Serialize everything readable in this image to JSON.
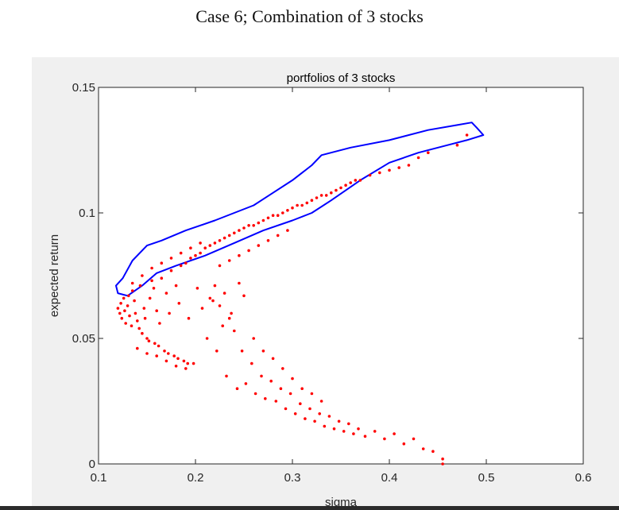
{
  "page": {
    "heading": "Case 6; Combination of  3 stocks"
  },
  "chart_data": {
    "type": "scatter",
    "title": "portfolios of 3 stocks",
    "xlabel": "sigma",
    "ylabel": "expected return",
    "xlim": [
      0.1,
      0.6
    ],
    "ylim": [
      0,
      0.15
    ],
    "xticks": [
      "0.1",
      "0.2",
      "0.3",
      "0.4",
      "0.5",
      "0.6"
    ],
    "yticks": [
      "0",
      "0.05",
      "0.1",
      "0.15"
    ],
    "grid": false,
    "colors": {
      "points": "#ff0000",
      "envelope": "#0000ff"
    },
    "series": [
      {
        "kind": "scatter",
        "points": [
          [
            0.12,
            0.062
          ],
          [
            0.122,
            0.06
          ],
          [
            0.124,
            0.058
          ],
          [
            0.123,
            0.064
          ],
          [
            0.126,
            0.066
          ],
          [
            0.128,
            0.056
          ],
          [
            0.13,
            0.063
          ],
          [
            0.127,
            0.061
          ],
          [
            0.132,
            0.059
          ],
          [
            0.131,
            0.067
          ],
          [
            0.135,
            0.069
          ],
          [
            0.134,
            0.055
          ],
          [
            0.138,
            0.06
          ],
          [
            0.14,
            0.057
          ],
          [
            0.137,
            0.065
          ],
          [
            0.142,
            0.054
          ],
          [
            0.145,
            0.052
          ],
          [
            0.143,
            0.071
          ],
          [
            0.147,
            0.062
          ],
          [
            0.15,
            0.05
          ],
          [
            0.148,
            0.058
          ],
          [
            0.152,
            0.049
          ],
          [
            0.155,
            0.073
          ],
          [
            0.153,
            0.066
          ],
          [
            0.158,
            0.048
          ],
          [
            0.16,
            0.061
          ],
          [
            0.157,
            0.07
          ],
          [
            0.162,
            0.047
          ],
          [
            0.165,
            0.074
          ],
          [
            0.163,
            0.056
          ],
          [
            0.168,
            0.045
          ],
          [
            0.17,
            0.068
          ],
          [
            0.172,
            0.044
          ],
          [
            0.175,
            0.077
          ],
          [
            0.173,
            0.06
          ],
          [
            0.178,
            0.043
          ],
          [
            0.18,
            0.071
          ],
          [
            0.182,
            0.042
          ],
          [
            0.185,
            0.079
          ],
          [
            0.183,
            0.064
          ],
          [
            0.188,
            0.041
          ],
          [
            0.19,
            0.08
          ],
          [
            0.192,
            0.04
          ],
          [
            0.195,
            0.082
          ],
          [
            0.193,
            0.058
          ],
          [
            0.198,
            0.04
          ],
          [
            0.2,
            0.083
          ],
          [
            0.202,
            0.07
          ],
          [
            0.205,
            0.084
          ],
          [
            0.207,
            0.062
          ],
          [
            0.21,
            0.086
          ],
          [
            0.212,
            0.05
          ],
          [
            0.215,
            0.087
          ],
          [
            0.218,
            0.065
          ],
          [
            0.22,
            0.088
          ],
          [
            0.222,
            0.045
          ],
          [
            0.225,
            0.089
          ],
          [
            0.228,
            0.055
          ],
          [
            0.23,
            0.09
          ],
          [
            0.232,
            0.035
          ],
          [
            0.235,
            0.091
          ],
          [
            0.237,
            0.06
          ],
          [
            0.24,
            0.092
          ],
          [
            0.243,
            0.03
          ],
          [
            0.245,
            0.093
          ],
          [
            0.248,
            0.045
          ],
          [
            0.25,
            0.094
          ],
          [
            0.252,
            0.032
          ],
          [
            0.255,
            0.095
          ],
          [
            0.258,
            0.04
          ],
          [
            0.26,
            0.095
          ],
          [
            0.262,
            0.028
          ],
          [
            0.265,
            0.096
          ],
          [
            0.268,
            0.035
          ],
          [
            0.27,
            0.097
          ],
          [
            0.272,
            0.026
          ],
          [
            0.275,
            0.098
          ],
          [
            0.278,
            0.033
          ],
          [
            0.28,
            0.099
          ],
          [
            0.283,
            0.025
          ],
          [
            0.285,
            0.099
          ],
          [
            0.288,
            0.03
          ],
          [
            0.29,
            0.1
          ],
          [
            0.293,
            0.022
          ],
          [
            0.295,
            0.101
          ],
          [
            0.298,
            0.028
          ],
          [
            0.3,
            0.102
          ],
          [
            0.303,
            0.02
          ],
          [
            0.305,
            0.103
          ],
          [
            0.308,
            0.024
          ],
          [
            0.31,
            0.103
          ],
          [
            0.313,
            0.018
          ],
          [
            0.315,
            0.104
          ],
          [
            0.318,
            0.022
          ],
          [
            0.32,
            0.105
          ],
          [
            0.323,
            0.017
          ],
          [
            0.325,
            0.106
          ],
          [
            0.328,
            0.02
          ],
          [
            0.33,
            0.107
          ],
          [
            0.333,
            0.015
          ],
          [
            0.335,
            0.107
          ],
          [
            0.338,
            0.019
          ],
          [
            0.34,
            0.108
          ],
          [
            0.343,
            0.014
          ],
          [
            0.345,
            0.109
          ],
          [
            0.348,
            0.017
          ],
          [
            0.35,
            0.11
          ],
          [
            0.353,
            0.013
          ],
          [
            0.355,
            0.111
          ],
          [
            0.358,
            0.016
          ],
          [
            0.36,
            0.112
          ],
          [
            0.363,
            0.012
          ],
          [
            0.365,
            0.113
          ],
          [
            0.368,
            0.014
          ],
          [
            0.37,
            0.113
          ],
          [
            0.375,
            0.011
          ],
          [
            0.38,
            0.115
          ],
          [
            0.385,
            0.013
          ],
          [
            0.39,
            0.116
          ],
          [
            0.395,
            0.01
          ],
          [
            0.4,
            0.117
          ],
          [
            0.405,
            0.012
          ],
          [
            0.41,
            0.118
          ],
          [
            0.415,
            0.008
          ],
          [
            0.42,
            0.119
          ],
          [
            0.425,
            0.01
          ],
          [
            0.43,
            0.122
          ],
          [
            0.435,
            0.006
          ],
          [
            0.44,
            0.124
          ],
          [
            0.445,
            0.005
          ],
          [
            0.455,
            0.002
          ],
          [
            0.455,
            0.0
          ],
          [
            0.47,
            0.127
          ],
          [
            0.48,
            0.131
          ],
          [
            0.135,
            0.072
          ],
          [
            0.145,
            0.075
          ],
          [
            0.155,
            0.078
          ],
          [
            0.165,
            0.08
          ],
          [
            0.175,
            0.082
          ],
          [
            0.185,
            0.084
          ],
          [
            0.195,
            0.086
          ],
          [
            0.205,
            0.088
          ],
          [
            0.14,
            0.046
          ],
          [
            0.15,
            0.044
          ],
          [
            0.16,
            0.043
          ],
          [
            0.17,
            0.041
          ],
          [
            0.18,
            0.039
          ],
          [
            0.19,
            0.038
          ],
          [
            0.215,
            0.066
          ],
          [
            0.22,
            0.071
          ],
          [
            0.225,
            0.063
          ],
          [
            0.23,
            0.068
          ],
          [
            0.235,
            0.058
          ],
          [
            0.24,
            0.053
          ],
          [
            0.245,
            0.072
          ],
          [
            0.25,
            0.067
          ],
          [
            0.26,
            0.05
          ],
          [
            0.27,
            0.045
          ],
          [
            0.28,
            0.042
          ],
          [
            0.29,
            0.038
          ],
          [
            0.3,
            0.034
          ],
          [
            0.31,
            0.03
          ],
          [
            0.32,
            0.028
          ],
          [
            0.33,
            0.025
          ],
          [
            0.225,
            0.079
          ],
          [
            0.235,
            0.081
          ],
          [
            0.245,
            0.083
          ],
          [
            0.255,
            0.085
          ],
          [
            0.265,
            0.087
          ],
          [
            0.275,
            0.089
          ],
          [
            0.285,
            0.091
          ],
          [
            0.295,
            0.093
          ]
        ]
      },
      {
        "kind": "line",
        "name": "",
        "closed": true,
        "points": [
          [
            0.118,
            0.071
          ],
          [
            0.125,
            0.074
          ],
          [
            0.135,
            0.081
          ],
          [
            0.15,
            0.087
          ],
          [
            0.165,
            0.089
          ],
          [
            0.19,
            0.093
          ],
          [
            0.22,
            0.097
          ],
          [
            0.24,
            0.1
          ],
          [
            0.26,
            0.103
          ],
          [
            0.28,
            0.108
          ],
          [
            0.3,
            0.113
          ],
          [
            0.32,
            0.119
          ],
          [
            0.33,
            0.123
          ],
          [
            0.36,
            0.126
          ],
          [
            0.4,
            0.129
          ],
          [
            0.44,
            0.133
          ],
          [
            0.47,
            0.135
          ],
          [
            0.485,
            0.136
          ],
          [
            0.49,
            0.134
          ],
          [
            0.497,
            0.131
          ],
          [
            0.48,
            0.129
          ],
          [
            0.46,
            0.127
          ],
          [
            0.43,
            0.124
          ],
          [
            0.4,
            0.12
          ],
          [
            0.37,
            0.113
          ],
          [
            0.34,
            0.105
          ],
          [
            0.32,
            0.1
          ],
          [
            0.3,
            0.097
          ],
          [
            0.27,
            0.093
          ],
          [
            0.24,
            0.088
          ],
          [
            0.21,
            0.083
          ],
          [
            0.18,
            0.079
          ],
          [
            0.16,
            0.076
          ],
          [
            0.145,
            0.071
          ],
          [
            0.13,
            0.067
          ],
          [
            0.12,
            0.068
          ]
        ]
      }
    ]
  }
}
